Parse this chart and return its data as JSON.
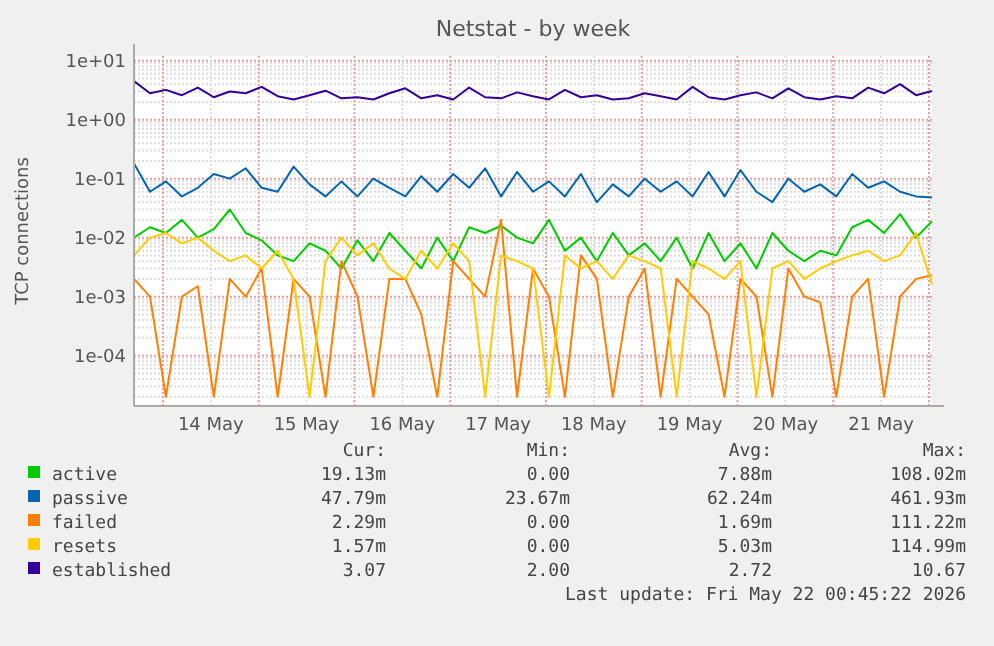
{
  "chart_data": {
    "type": "line",
    "title": "Netstat - by week",
    "ylabel": "TCP connections",
    "log": true,
    "grid": true,
    "legend": "bottom",
    "line_style": "solid",
    "marker": "none",
    "x": [
      "2026-05-13T16:45",
      "2026-05-13T20:45",
      "2026-05-14T00:45",
      "2026-05-14T04:45",
      "2026-05-14T08:45",
      "2026-05-14T12:45",
      "2026-05-14T16:45",
      "2026-05-14T20:45",
      "2026-05-15T00:45",
      "2026-05-15T04:45",
      "2026-05-15T08:45",
      "2026-05-15T12:45",
      "2026-05-15T16:45",
      "2026-05-15T20:45",
      "2026-05-16T00:45",
      "2026-05-16T04:45",
      "2026-05-16T08:45",
      "2026-05-16T12:45",
      "2026-05-16T16:45",
      "2026-05-16T20:45",
      "2026-05-17T00:45",
      "2026-05-17T04:45",
      "2026-05-17T08:45",
      "2026-05-17T12:45",
      "2026-05-17T16:45",
      "2026-05-17T20:45",
      "2026-05-18T00:45",
      "2026-05-18T04:45",
      "2026-05-18T08:45",
      "2026-05-18T12:45",
      "2026-05-18T16:45",
      "2026-05-18T20:45",
      "2026-05-19T00:45",
      "2026-05-19T04:45",
      "2026-05-19T08:45",
      "2026-05-19T12:45",
      "2026-05-19T16:45",
      "2026-05-19T20:45",
      "2026-05-20T00:45",
      "2026-05-20T04:45",
      "2026-05-20T08:45",
      "2026-05-20T12:45",
      "2026-05-20T16:45",
      "2026-05-20T20:45",
      "2026-05-21T00:45",
      "2026-05-21T04:45",
      "2026-05-21T08:45",
      "2026-05-21T12:45",
      "2026-05-21T16:45",
      "2026-05-21T20:45",
      "2026-05-22T00:45"
    ],
    "xlim": [
      "2026-05-13T16:45",
      "2026-05-22T00:45"
    ],
    "xticks": [
      {
        "value": "2026-05-14T00:00",
        "label": null
      },
      {
        "value": "2026-05-14T12:00",
        "label": "14 May"
      },
      {
        "value": "2026-05-15T00:00",
        "label": null
      },
      {
        "value": "2026-05-15T12:00",
        "label": "15 May"
      },
      {
        "value": "2026-05-16T00:00",
        "label": null
      },
      {
        "value": "2026-05-16T12:00",
        "label": "16 May"
      },
      {
        "value": "2026-05-17T00:00",
        "label": null
      },
      {
        "value": "2026-05-17T12:00",
        "label": "17 May"
      },
      {
        "value": "2026-05-18T00:00",
        "label": null
      },
      {
        "value": "2026-05-18T12:00",
        "label": "18 May"
      },
      {
        "value": "2026-05-19T00:00",
        "label": null
      },
      {
        "value": "2026-05-19T12:00",
        "label": "19 May"
      },
      {
        "value": "2026-05-20T00:00",
        "label": null
      },
      {
        "value": "2026-05-20T12:00",
        "label": "20 May"
      },
      {
        "value": "2026-05-21T00:00",
        "label": null
      },
      {
        "value": "2026-05-21T12:00",
        "label": "21 May"
      },
      {
        "value": "2026-05-22T00:00",
        "label": null
      }
    ],
    "ylim": [
      1.4e-05,
      12
    ],
    "yticks": [
      {
        "value": 0.0001,
        "label": "1e-04"
      },
      {
        "value": 0.001,
        "label": "1e-03"
      },
      {
        "value": 0.01,
        "label": "1e-02"
      },
      {
        "value": 0.1,
        "label": "1e-01"
      },
      {
        "value": 1,
        "label": "1e+00"
      },
      {
        "value": 10,
        "label": "1e+01"
      }
    ],
    "series": [
      {
        "name": "active",
        "color": "#00cc00",
        "values": [
          0.01,
          0.015,
          0.012,
          0.02,
          0.01,
          0.014,
          0.03,
          0.012,
          0.009,
          0.005,
          0.004,
          0.008,
          0.006,
          0.003,
          0.009,
          0.004,
          0.012,
          0.006,
          0.003,
          0.01,
          0.004,
          0.015,
          0.012,
          0.016,
          0.01,
          0.008,
          0.02,
          0.006,
          0.01,
          0.004,
          0.012,
          0.005,
          0.008,
          0.004,
          0.01,
          0.003,
          0.012,
          0.004,
          0.008,
          0.003,
          0.012,
          0.006,
          0.004,
          0.006,
          0.005,
          0.015,
          0.02,
          0.012,
          0.025,
          0.01,
          0.019
        ]
      },
      {
        "name": "passive",
        "color": "#0066b3",
        "values": [
          0.18,
          0.06,
          0.09,
          0.05,
          0.07,
          0.12,
          0.1,
          0.15,
          0.07,
          0.06,
          0.16,
          0.08,
          0.05,
          0.09,
          0.05,
          0.1,
          0.07,
          0.05,
          0.11,
          0.06,
          0.12,
          0.07,
          0.15,
          0.05,
          0.13,
          0.06,
          0.09,
          0.05,
          0.12,
          0.04,
          0.08,
          0.05,
          0.1,
          0.06,
          0.09,
          0.05,
          0.13,
          0.05,
          0.14,
          0.06,
          0.04,
          0.1,
          0.06,
          0.08,
          0.05,
          0.12,
          0.07,
          0.09,
          0.06,
          0.05,
          0.048
        ]
      },
      {
        "name": "failed",
        "color": "#ff8000",
        "values": [
          0.002,
          0.001,
          2e-05,
          0.001,
          0.0015,
          2e-05,
          0.002,
          0.001,
          0.003,
          2e-05,
          0.002,
          0.001,
          2e-05,
          0.004,
          0.001,
          2e-05,
          0.002,
          0.002,
          0.0005,
          2e-05,
          0.004,
          0.002,
          0.001,
          0.02,
          2e-05,
          0.003,
          0.001,
          2e-05,
          0.005,
          0.002,
          2e-05,
          0.001,
          0.003,
          2e-05,
          0.002,
          0.001,
          0.0005,
          2e-05,
          0.002,
          0.001,
          2e-05,
          0.003,
          0.001,
          0.0008,
          2e-05,
          0.001,
          0.002,
          2e-05,
          0.001,
          0.002,
          0.0023
        ]
      },
      {
        "name": "resets",
        "color": "#ffcc00",
        "values": [
          0.005,
          0.01,
          0.012,
          0.008,
          0.01,
          0.006,
          0.004,
          0.005,
          0.003,
          0.006,
          0.002,
          2e-05,
          0.004,
          0.01,
          0.005,
          0.008,
          0.003,
          0.002,
          0.006,
          0.003,
          0.008,
          0.004,
          2e-05,
          0.005,
          0.004,
          0.003,
          2e-05,
          0.005,
          0.003,
          0.004,
          0.002,
          0.005,
          0.004,
          0.003,
          2e-05,
          0.004,
          0.003,
          0.002,
          0.004,
          2e-05,
          0.003,
          0.004,
          0.002,
          0.003,
          0.004,
          0.005,
          0.006,
          0.004,
          0.005,
          0.012,
          0.0016
        ]
      },
      {
        "name": "established",
        "color": "#330099",
        "values": [
          4.5,
          2.8,
          3.2,
          2.6,
          3.5,
          2.4,
          3.0,
          2.8,
          3.6,
          2.5,
          2.2,
          2.6,
          3.1,
          2.3,
          2.4,
          2.2,
          2.8,
          3.4,
          2.3,
          2.6,
          2.2,
          3.5,
          2.4,
          2.3,
          2.9,
          2.5,
          2.2,
          3.2,
          2.4,
          2.6,
          2.2,
          2.3,
          2.8,
          2.5,
          2.2,
          3.6,
          2.4,
          2.2,
          2.6,
          2.9,
          2.3,
          3.4,
          2.4,
          2.2,
          2.5,
          2.3,
          3.5,
          2.8,
          4.0,
          2.6,
          3.07
        ]
      }
    ],
    "annotations": [
      "Cur:",
      "Min:",
      "Avg:",
      "Max:",
      "19.13m",
      "0.00",
      "7.88m",
      "108.02m",
      "47.79m",
      "23.67m",
      "62.24m",
      "461.93m",
      "2.29m",
      "0.00",
      "1.69m",
      "111.22m",
      "1.57m",
      "0.00",
      "5.03m",
      "114.99m",
      "3.07",
      "2.00",
      "2.72",
      "10.67",
      "Last update: Fri May 22 00:45:22 2026"
    ]
  }
}
